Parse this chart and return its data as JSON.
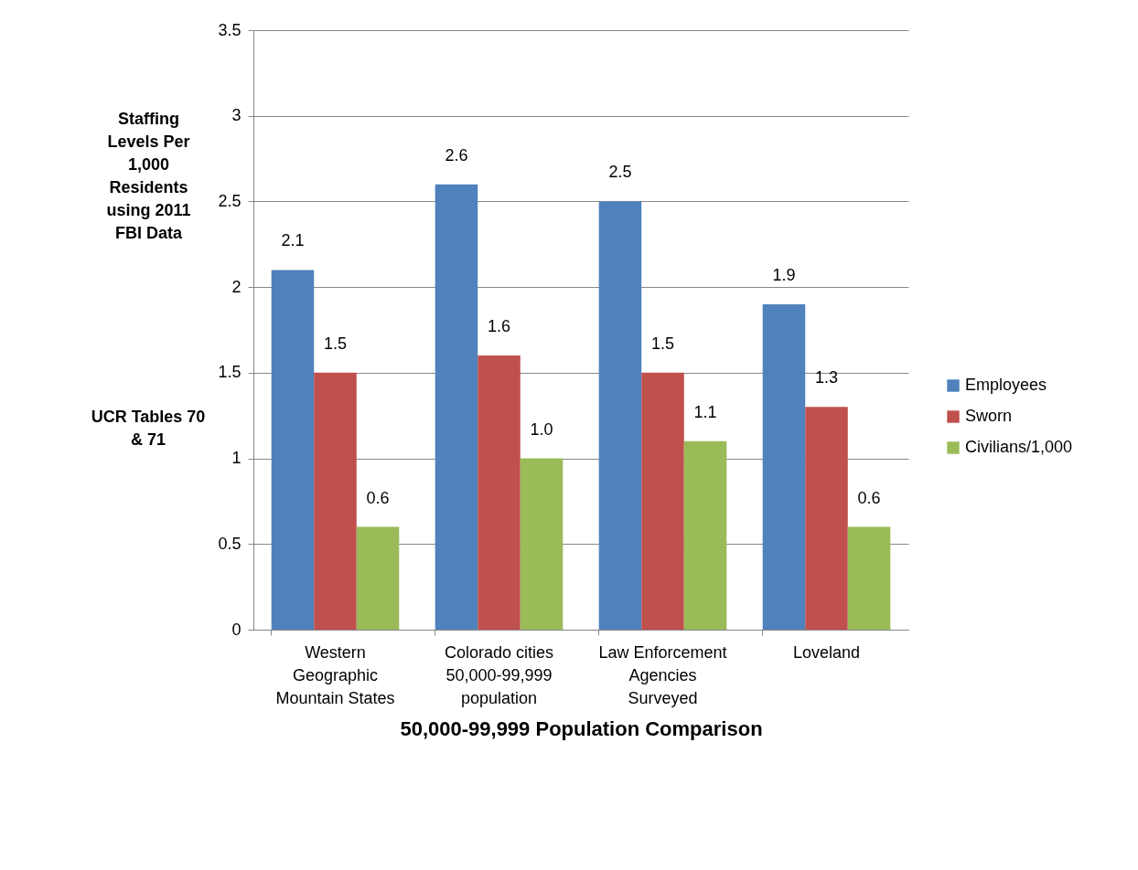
{
  "chart_data": {
    "type": "bar",
    "categories": [
      "Western Geographic Mountain States",
      "Colorado cities 50,000-99,999 population",
      "Law Enforcement Agencies Surveyed",
      "Loveland"
    ],
    "series": [
      {
        "name": "Employees",
        "color": "#4f81bd",
        "values": [
          2.1,
          2.6,
          2.5,
          1.9
        ],
        "value_labels": [
          "2.1",
          "2.6",
          "2.5",
          "1.9"
        ]
      },
      {
        "name": "Sworn",
        "color": "#c0504d",
        "values": [
          1.5,
          1.6,
          1.5,
          1.3
        ],
        "value_labels": [
          "1.5",
          "1.6",
          "1.5",
          "1.3"
        ]
      },
      {
        "name": "Civilians/1,000",
        "color": "#9bbb59",
        "values": [
          0.6,
          1.0,
          1.1,
          0.6
        ],
        "value_labels": [
          "0.6",
          "1.0",
          "1.1",
          "0.6"
        ]
      }
    ],
    "xlabel": "50,000-99,999 Population Comparison",
    "ylabel": "Staffing Levels Per 1,000 Residents using 2011 FBI Data",
    "annotations": [
      "UCR Tables 70 & 71"
    ],
    "ylim": [
      0,
      3.5
    ],
    "yticks": [
      0,
      0.5,
      1,
      1.5,
      2,
      2.5,
      3,
      3.5
    ],
    "grid": "y",
    "legend": "right"
  }
}
